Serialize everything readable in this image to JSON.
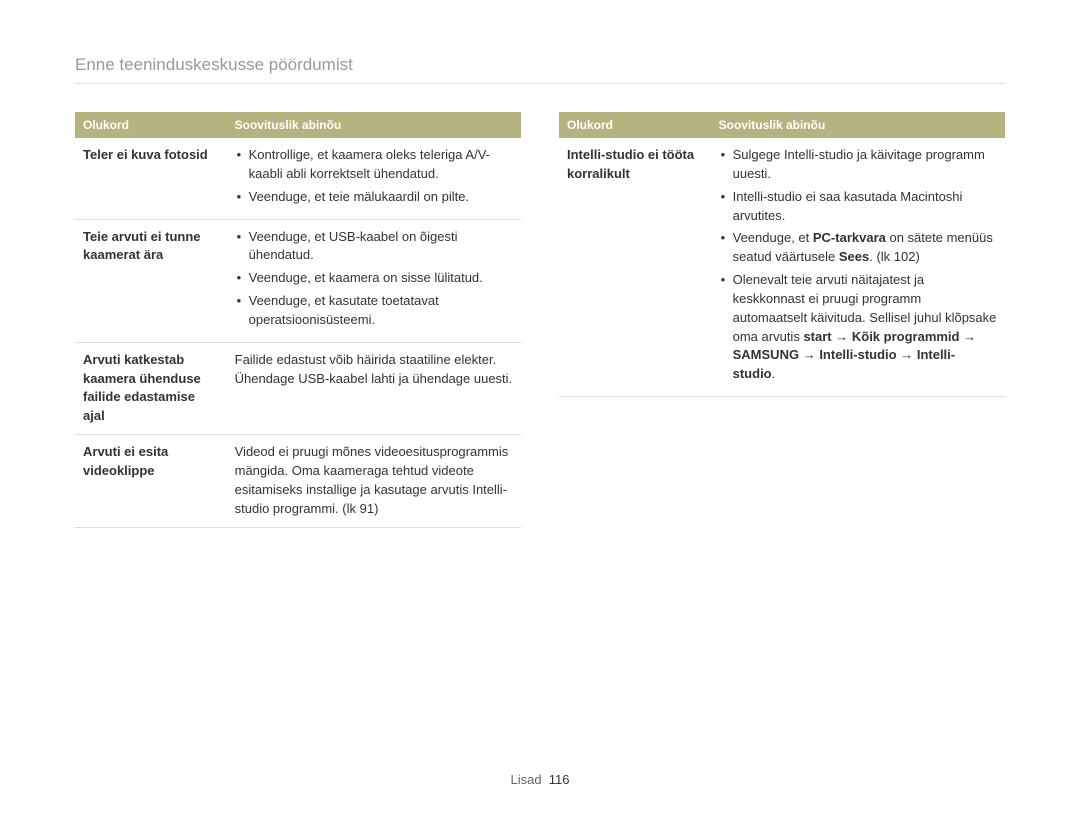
{
  "pageTitle": "Enne teeninduskeskusse pöördumist",
  "headers": {
    "situation": "Olukord",
    "solution": "Soovituslik abinõu"
  },
  "left": {
    "rows": [
      {
        "situation": "Teler ei kuva fotosid",
        "items": [
          "Kontrollige, et kaamera oleks teleriga A/V-kaabli abli korrektselt ühendatud.",
          "Veenduge, et teie mälukaardil on pilte."
        ]
      },
      {
        "situation": "Teie arvuti ei tunne kaamerat ära",
        "items": [
          "Veenduge, et USB-kaabel on õigesti ühendatud.",
          "Veenduge, et kaamera on sisse lülitatud.",
          "Veenduge, et kasutate toetatavat operatsioonisüsteemi."
        ]
      },
      {
        "situation": "Arvuti katkestab kaamera ühenduse failide edastamise ajal",
        "plain": "Failide edastust võib häirida staatiline elekter. Ühendage USB-kaabel lahti ja ühendage uuesti."
      },
      {
        "situation": "Arvuti ei esita videoklippe",
        "plain": "Videod ei pruugi mõnes videoesitusprogrammis mängida. Oma kaameraga tehtud videote esitamiseks installige ja kasutage arvutis Intelli-studio programmi. (lk 91)"
      }
    ]
  },
  "right": {
    "rows": [
      {
        "situation": "Intelli-studio ei tööta korralikult",
        "complex": true,
        "i0": "Sulgege Intelli-studio ja käivitage programm uuesti.",
        "i1": "Intelli-studio ei saa kasutada Macintoshi arvutites.",
        "i2a": "Veenduge, et ",
        "i2b": "PC-tarkvara",
        "i2c": " on sätete menüüs seatud väärtusele ",
        "i2d": "Sees",
        "i2e": ". (lk 102)",
        "i3a": "Olenevalt teie arvuti näitajatest ja keskkonnast ei pruugi programm automaatselt käivituda. Sellisel juhul klõpsake oma arvutis ",
        "i3b": "start",
        "i3c": " → ",
        "i3d": "Kõik programmid",
        "i3e": " → ",
        "i3f": "SAMSUNG",
        "i3g": " → ",
        "i3h": "Intelli-studio",
        "i3i": " → ",
        "i3j": "Intelli-studio",
        "i3k": "."
      }
    ]
  },
  "footer": {
    "section": "Lisad",
    "page": "116"
  }
}
